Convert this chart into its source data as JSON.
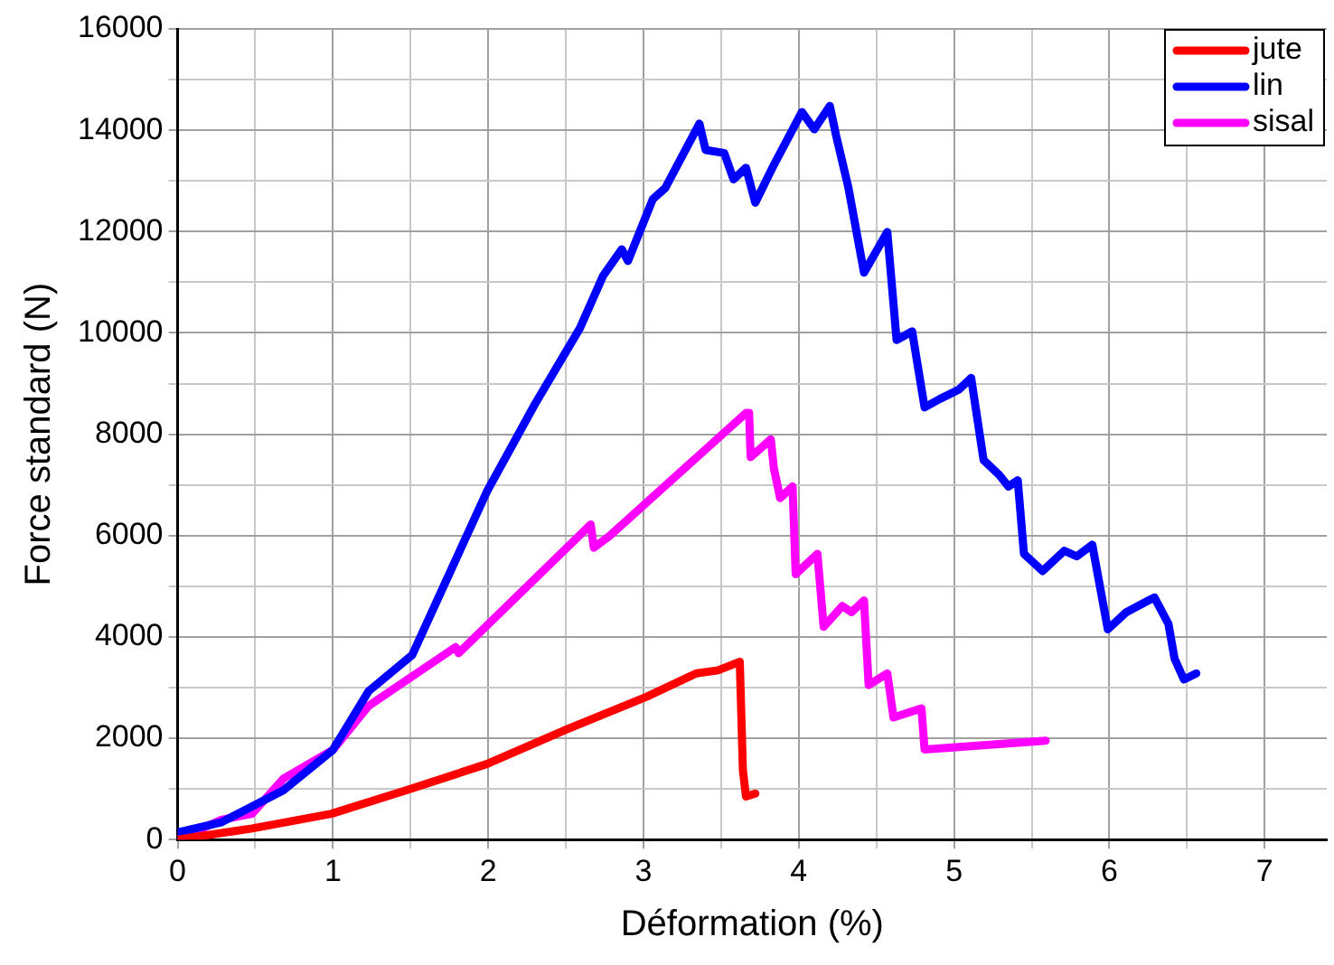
{
  "chart_data": {
    "type": "line",
    "xlabel": "Déformation (%)",
    "ylabel": "Force standard (N)",
    "xlim": [
      0,
      7.4
    ],
    "xticks": [
      0,
      {
        "value": 0.5,
        "label": null
      },
      1,
      {
        "value": 1.5,
        "label": null
      },
      2,
      {
        "value": 2.5,
        "label": null
      },
      3,
      {
        "value": 3.5,
        "label": null
      },
      4,
      {
        "value": 4.5,
        "label": null
      },
      5,
      {
        "value": 5.5,
        "label": null
      },
      6,
      {
        "value": 6.5,
        "label": null
      },
      7
    ],
    "ylim": [
      0,
      16000
    ],
    "yticks": [
      0,
      {
        "value": 1000,
        "label": null
      },
      2000,
      {
        "value": 3000,
        "label": null
      },
      4000,
      {
        "value": 5000,
        "label": null
      },
      6000,
      {
        "value": 7000,
        "label": null
      },
      8000,
      {
        "value": 9000,
        "label": null
      },
      10000,
      {
        "value": 11000,
        "label": null
      },
      12000,
      {
        "value": 13000,
        "label": null
      },
      14000,
      {
        "value": 15000,
        "label": null
      },
      16000
    ],
    "grid": true,
    "legend": "top right",
    "marker": "none",
    "line_style": "solid",
    "series": [
      {
        "name": "jute",
        "color": "#ff0000",
        "x": [
          0,
          0.48,
          0.99,
          1.47,
          1.99,
          2.51,
          3.02,
          3.34,
          3.48,
          3.62,
          3.64,
          3.66,
          3.72
        ],
        "values": [
          0,
          220,
          510,
          970,
          1490,
          2180,
          2820,
          3280,
          3340,
          3510,
          1370,
          850,
          910
        ]
      },
      {
        "name": "lin",
        "color": "#0000ff",
        "x": [
          0,
          0.28,
          0.68,
          1,
          1.23,
          1.51,
          1.99,
          2.3,
          2.59,
          2.74,
          2.86,
          2.9,
          3.06,
          3.14,
          3.36,
          3.4,
          3.52,
          3.58,
          3.66,
          3.72,
          3.84,
          4.02,
          4.1,
          4.2,
          4.24,
          4.32,
          4.42,
          4.57,
          4.63,
          4.73,
          4.81,
          4.91,
          5.03,
          5.11,
          5.19,
          5.29,
          5.35,
          5.41,
          5.45,
          5.57,
          5.71,
          5.79,
          5.89,
          5.99,
          6.11,
          6.29,
          6.38,
          6.42,
          6.48,
          6.56
        ],
        "values": [
          140,
          340,
          970,
          1770,
          2930,
          3640,
          6860,
          8590,
          10090,
          11130,
          11650,
          11420,
          12640,
          12860,
          14130,
          13610,
          13550,
          13030,
          13260,
          12570,
          13320,
          14360,
          14020,
          14480,
          13900,
          12860,
          11190,
          11990,
          9860,
          10030,
          8530,
          8700,
          8880,
          9110,
          7490,
          7200,
          6970,
          7090,
          5640,
          5300,
          5700,
          5590,
          5820,
          4150,
          4490,
          4780,
          4260,
          3570,
          3160,
          3280
        ]
      },
      {
        "name": "sisal",
        "color": "#ff00ff",
        "x": [
          0,
          0.28,
          0.48,
          0.68,
          1,
          1.23,
          1.79,
          1.81,
          2.66,
          2.68,
          2.78,
          3.66,
          3.68,
          3.69,
          3.82,
          3.84,
          3.88,
          3.96,
          3.98,
          4.12,
          4.16,
          4.28,
          4.34,
          4.42,
          4.45,
          4.57,
          4.61,
          4.79,
          4.81,
          5.59
        ],
        "values": [
          0,
          390,
          510,
          1200,
          1770,
          2640,
          3800,
          3680,
          6220,
          5760,
          5990,
          8420,
          8420,
          7550,
          7900,
          7320,
          6740,
          6970,
          5240,
          5640,
          4200,
          4610,
          4490,
          4720,
          3050,
          3280,
          2410,
          2590,
          1780,
          1950
        ]
      }
    ]
  }
}
